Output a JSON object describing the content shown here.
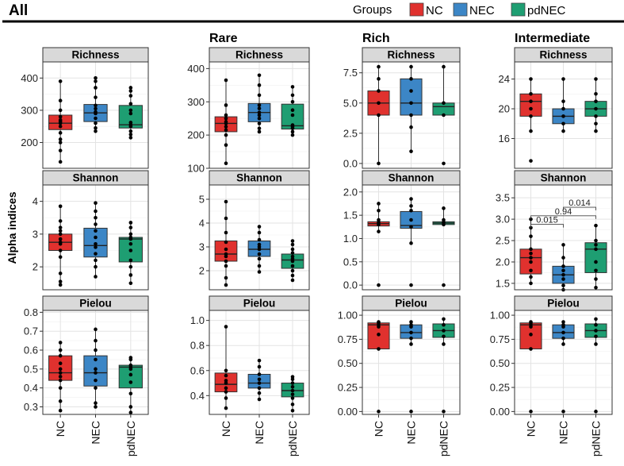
{
  "figure": {
    "title": "All",
    "y_axis_label": "Alpha indices",
    "legend": {
      "title": "Groups",
      "items": [
        {
          "label": "NC",
          "color": "#e0312e"
        },
        {
          "label": "NEC",
          "color": "#3c86c6"
        },
        {
          "label": "pdNEC",
          "color": "#1e9e72"
        }
      ]
    },
    "columns": [
      "All",
      "Rare",
      "Rich",
      "Intermediate"
    ],
    "rows": [
      "Richness",
      "Shannon",
      "Pielou"
    ]
  },
  "chart_data": [
    {
      "type": "boxplot",
      "column": "All",
      "metric": "Richness",
      "title": "Richness",
      "ylim": [
        120,
        450
      ],
      "yticks": [
        200,
        300,
        400
      ],
      "ytick_labels": [
        "200",
        "300",
        "400"
      ],
      "categories": [
        "NC",
        "NEC",
        "pdNEC"
      ],
      "boxes": [
        {
          "group": "NC",
          "q1": 240,
          "median": 260,
          "q3": 285,
          "whisker_low": 140,
          "whisker_high": 390,
          "points": [
            140,
            175,
            200,
            210,
            230,
            250,
            260,
            265,
            270,
            280,
            300,
            330,
            390
          ]
        },
        {
          "group": "NEC",
          "q1": 265,
          "median": 292,
          "q3": 318,
          "whisker_low": 235,
          "whisker_high": 400,
          "points": [
            235,
            245,
            260,
            275,
            290,
            295,
            305,
            315,
            340,
            370,
            390,
            400
          ]
        },
        {
          "group": "pdNEC",
          "q1": 245,
          "median": 255,
          "q3": 315,
          "whisker_low": 215,
          "whisker_high": 370,
          "points": [
            215,
            225,
            235,
            250,
            255,
            262,
            290,
            300,
            320,
            345,
            360,
            370
          ]
        }
      ]
    },
    {
      "type": "boxplot",
      "column": "All",
      "metric": "Shannon",
      "title": "Shannon",
      "ylim": [
        1.3,
        4.5
      ],
      "yticks": [
        2,
        3,
        4
      ],
      "ytick_labels": [
        "2",
        "3",
        "4"
      ],
      "categories": [
        "NC",
        "NEC",
        "pdNEC"
      ],
      "boxes": [
        {
          "group": "NC",
          "q1": 2.5,
          "median": 2.75,
          "q3": 3.0,
          "whisker_low": 1.45,
          "whisker_high": 3.85,
          "points": [
            1.45,
            1.55,
            1.8,
            2.3,
            2.5,
            2.7,
            2.75,
            2.85,
            3.0,
            3.1,
            3.2,
            3.4,
            3.85
          ]
        },
        {
          "group": "NEC",
          "q1": 2.3,
          "median": 2.65,
          "q3": 3.18,
          "whisker_low": 1.7,
          "whisker_high": 3.95,
          "points": [
            1.7,
            2.0,
            2.2,
            2.4,
            2.6,
            2.7,
            2.9,
            3.1,
            3.3,
            3.5,
            3.7,
            3.95
          ]
        },
        {
          "group": "pdNEC",
          "q1": 2.15,
          "median": 2.85,
          "q3": 2.9,
          "whisker_low": 1.5,
          "whisker_high": 3.35,
          "points": [
            1.5,
            1.75,
            2.0,
            2.2,
            2.5,
            2.7,
            2.85,
            2.9,
            3.0,
            3.2,
            3.35
          ]
        }
      ]
    },
    {
      "type": "boxplot",
      "column": "All",
      "metric": "Pielou",
      "title": "Pielou",
      "ylim": [
        0.26,
        0.81
      ],
      "yticks": [
        0.3,
        0.4,
        0.5,
        0.6,
        0.7,
        0.8
      ],
      "ytick_labels": [
        "0.3",
        "0.4",
        "0.5",
        "0.6",
        "0.7",
        "0.8"
      ],
      "categories": [
        "NC",
        "NEC",
        "pdNEC"
      ],
      "boxes": [
        {
          "group": "NC",
          "q1": 0.44,
          "median": 0.48,
          "q3": 0.57,
          "whisker_low": 0.28,
          "whisker_high": 0.64,
          "points": [
            0.28,
            0.33,
            0.4,
            0.44,
            0.46,
            0.48,
            0.5,
            0.53,
            0.57,
            0.6,
            0.64
          ]
        },
        {
          "group": "NEC",
          "q1": 0.41,
          "median": 0.48,
          "q3": 0.57,
          "whisker_low": 0.3,
          "whisker_high": 0.71,
          "points": [
            0.3,
            0.32,
            0.4,
            0.44,
            0.48,
            0.5,
            0.55,
            0.6,
            0.65,
            0.71
          ]
        },
        {
          "group": "pdNEC",
          "q1": 0.4,
          "median": 0.51,
          "q3": 0.52,
          "whisker_low": 0.27,
          "whisker_high": 0.56,
          "points": [
            0.27,
            0.3,
            0.37,
            0.43,
            0.47,
            0.5,
            0.51,
            0.52,
            0.55,
            0.56
          ]
        }
      ]
    },
    {
      "type": "boxplot",
      "column": "Rare",
      "metric": "Richness",
      "title": "Richness",
      "ylim": [
        100,
        420
      ],
      "yticks": [
        100,
        200,
        300,
        400
      ],
      "ytick_labels": [
        "100",
        "200",
        "300",
        "400"
      ],
      "categories": [
        "NC",
        "NEC",
        "pdNEC"
      ],
      "boxes": [
        {
          "group": "NC",
          "q1": 210,
          "median": 235,
          "q3": 255,
          "whisker_low": 115,
          "whisker_high": 365,
          "points": [
            115,
            170,
            200,
            215,
            225,
            235,
            240,
            250,
            260,
            290,
            365
          ]
        },
        {
          "group": "NEC",
          "q1": 240,
          "median": 268,
          "q3": 295,
          "whisker_low": 210,
          "whisker_high": 380,
          "points": [
            210,
            220,
            235,
            250,
            260,
            268,
            280,
            290,
            320,
            350,
            380
          ]
        },
        {
          "group": "pdNEC",
          "q1": 218,
          "median": 228,
          "q3": 293,
          "whisker_low": 200,
          "whisker_high": 345,
          "points": [
            200,
            210,
            220,
            225,
            230,
            260,
            275,
            300,
            320,
            345
          ]
        }
      ]
    },
    {
      "type": "boxplot",
      "column": "Rare",
      "metric": "Shannon",
      "title": "Shannon",
      "ylim": [
        1.2,
        5.6
      ],
      "yticks": [
        2,
        3,
        4,
        5
      ],
      "ytick_labels": [
        "2",
        "3",
        "4",
        "5"
      ],
      "categories": [
        "NC",
        "NEC",
        "pdNEC"
      ],
      "boxes": [
        {
          "group": "NC",
          "q1": 2.4,
          "median": 2.7,
          "q3": 3.25,
          "whisker_low": 1.4,
          "whisker_high": 4.9,
          "points": [
            1.4,
            1.7,
            2.2,
            2.4,
            2.6,
            2.7,
            2.9,
            3.2,
            3.6,
            4.2,
            4.9
          ]
        },
        {
          "group": "NEC",
          "q1": 2.6,
          "median": 2.9,
          "q3": 3.25,
          "whisker_low": 1.95,
          "whisker_high": 3.85,
          "points": [
            1.95,
            2.2,
            2.5,
            2.7,
            2.9,
            3.0,
            3.1,
            3.3,
            3.6,
            3.85
          ]
        },
        {
          "group": "pdNEC",
          "q1": 2.1,
          "median": 2.45,
          "q3": 2.7,
          "whisker_low": 1.6,
          "whisker_high": 3.25,
          "points": [
            1.6,
            1.8,
            2.0,
            2.2,
            2.4,
            2.5,
            2.6,
            2.75,
            2.9,
            3.1,
            3.25
          ]
        }
      ]
    },
    {
      "type": "boxplot",
      "column": "Rare",
      "metric": "Pielou",
      "title": "Pielou",
      "ylim": [
        0.25,
        1.08
      ],
      "yticks": [
        0.4,
        0.6,
        0.8,
        1.0
      ],
      "ytick_labels": [
        "0.4",
        "0.6",
        "0.8",
        "1.0"
      ],
      "categories": [
        "NC",
        "NEC",
        "pdNEC"
      ],
      "boxes": [
        {
          "group": "NC",
          "q1": 0.43,
          "median": 0.49,
          "q3": 0.58,
          "whisker_low": 0.3,
          "whisker_high": 0.95,
          "points": [
            0.3,
            0.38,
            0.43,
            0.46,
            0.5,
            0.52,
            0.56,
            0.6,
            0.95
          ]
        },
        {
          "group": "NEC",
          "q1": 0.46,
          "median": 0.5,
          "q3": 0.57,
          "whisker_low": 0.37,
          "whisker_high": 0.68,
          "points": [
            0.37,
            0.42,
            0.46,
            0.5,
            0.53,
            0.57,
            0.63,
            0.68
          ]
        },
        {
          "group": "pdNEC",
          "q1": 0.39,
          "median": 0.44,
          "q3": 0.5,
          "whisker_low": 0.28,
          "whisker_high": 0.55,
          "points": [
            0.28,
            0.33,
            0.38,
            0.41,
            0.44,
            0.47,
            0.5,
            0.53,
            0.55
          ]
        }
      ]
    },
    {
      "type": "boxplot",
      "column": "Rich",
      "metric": "Richness",
      "title": "Richness",
      "ylim": [
        -0.4,
        8.4
      ],
      "yticks": [
        0,
        2.5,
        5,
        7.5
      ],
      "ytick_labels": [
        "0.0",
        "2.5",
        "5.0",
        "7.5"
      ],
      "categories": [
        "NC",
        "NEC",
        "pdNEC"
      ],
      "boxes": [
        {
          "group": "NC",
          "q1": 4,
          "median": 5,
          "q3": 6,
          "whisker_low": 0,
          "whisker_high": 8,
          "points": [
            0,
            4,
            5,
            6,
            7,
            8
          ]
        },
        {
          "group": "NEC",
          "q1": 4,
          "median": 5,
          "q3": 7,
          "whisker_low": 1,
          "whisker_high": 8,
          "points": [
            1,
            3,
            4,
            5,
            6,
            7,
            8
          ]
        },
        {
          "group": "pdNEC",
          "q1": 4,
          "median": 4.7,
          "q3": 5,
          "whisker_low": 4,
          "whisker_high": 8,
          "points": [
            0,
            4,
            5,
            8
          ]
        }
      ]
    },
    {
      "type": "boxplot",
      "column": "Rich",
      "metric": "Shannon",
      "title": "Shannon",
      "ylim": [
        -0.1,
        2.15
      ],
      "yticks": [
        0,
        0.5,
        1.0,
        1.5,
        2.0
      ],
      "ytick_labels": [
        "0.0",
        "0.5",
        "1.0",
        "1.5",
        "2.0"
      ],
      "categories": [
        "NC",
        "NEC",
        "pdNEC"
      ],
      "boxes": [
        {
          "group": "NC",
          "q1": 1.27,
          "median": 1.32,
          "q3": 1.36,
          "whisker_low": 1.15,
          "whisker_high": 1.75,
          "points": [
            0,
            1.15,
            1.3,
            1.35,
            1.4,
            1.6,
            1.75
          ]
        },
        {
          "group": "NEC",
          "q1": 1.22,
          "median": 1.28,
          "q3": 1.58,
          "whisker_low": 0.9,
          "whisker_high": 1.85,
          "points": [
            0,
            0.9,
            1.25,
            1.4,
            1.6,
            1.7,
            1.85
          ]
        },
        {
          "group": "pdNEC",
          "q1": 1.3,
          "median": 1.33,
          "q3": 1.36,
          "whisker_low": 1.3,
          "whisker_high": 1.65,
          "points": [
            0,
            1.3,
            1.35,
            1.4,
            1.65
          ]
        }
      ]
    },
    {
      "type": "boxplot",
      "column": "Rich",
      "metric": "Pielou",
      "title": "Pielou",
      "ylim": [
        -0.03,
        1.05
      ],
      "yticks": [
        0,
        0.25,
        0.5,
        0.75,
        1.0
      ],
      "ytick_labels": [
        "0.00",
        "0.25",
        "0.50",
        "0.75",
        "1.00"
      ],
      "categories": [
        "NC",
        "NEC",
        "pdNEC"
      ],
      "boxes": [
        {
          "group": "NC",
          "q1": 0.65,
          "median": 0.9,
          "q3": 0.92,
          "whisker_low": 0.65,
          "whisker_high": 0.93,
          "points": [
            0,
            0.65,
            0.8,
            0.88,
            0.9,
            0.92,
            0.93
          ]
        },
        {
          "group": "NEC",
          "q1": 0.76,
          "median": 0.82,
          "q3": 0.9,
          "whisker_low": 0.7,
          "whisker_high": 0.93,
          "points": [
            0,
            0.7,
            0.76,
            0.82,
            0.88,
            0.9,
            0.93
          ]
        },
        {
          "group": "pdNEC",
          "q1": 0.77,
          "median": 0.84,
          "q3": 0.91,
          "whisker_low": 0.7,
          "whisker_high": 0.96,
          "points": [
            0,
            0.7,
            0.78,
            0.84,
            0.9,
            0.96
          ]
        }
      ]
    },
    {
      "type": "boxplot",
      "column": "Intermediate",
      "metric": "Richness",
      "title": "Richness",
      "ylim": [
        12,
        26.3
      ],
      "yticks": [
        16,
        20,
        24
      ],
      "ytick_labels": [
        "16",
        "20",
        "24"
      ],
      "categories": [
        "NC",
        "NEC",
        "pdNEC"
      ],
      "boxes": [
        {
          "group": "NC",
          "q1": 19,
          "median": 21,
          "q3": 22,
          "whisker_low": 17,
          "whisker_high": 24,
          "points": [
            13,
            17,
            19,
            20,
            21,
            22,
            24
          ]
        },
        {
          "group": "NEC",
          "q1": 18,
          "median": 19,
          "q3": 20,
          "whisker_low": 17,
          "whisker_high": 24,
          "points": [
            17,
            18,
            19,
            20,
            21,
            24
          ]
        },
        {
          "group": "pdNEC",
          "q1": 19,
          "median": 20,
          "q3": 21,
          "whisker_low": 17,
          "whisker_high": 24,
          "points": [
            17,
            18,
            19,
            20,
            21,
            22,
            24
          ]
        }
      ]
    },
    {
      "type": "boxplot",
      "column": "Intermediate",
      "metric": "Shannon",
      "title": "Shannon",
      "ylim": [
        1.35,
        3.8
      ],
      "yticks": [
        1.5,
        2.0,
        2.5,
        3.0,
        3.5
      ],
      "ytick_labels": [
        "1.5",
        "2.0",
        "2.5",
        "3.0",
        "3.5"
      ],
      "categories": [
        "NC",
        "NEC",
        "pdNEC"
      ],
      "boxes": [
        {
          "group": "NC",
          "q1": 1.72,
          "median": 2.1,
          "q3": 2.3,
          "whisker_low": 1.5,
          "whisker_high": 3.0,
          "points": [
            1.5,
            1.65,
            1.8,
            2.0,
            2.1,
            2.2,
            2.3,
            2.6,
            2.8,
            3.0
          ]
        },
        {
          "group": "NEC",
          "q1": 1.5,
          "median": 1.7,
          "q3": 1.9,
          "whisker_low": 1.35,
          "whisker_high": 2.4,
          "points": [
            1.35,
            1.45,
            1.6,
            1.7,
            1.8,
            1.9,
            2.1,
            2.4
          ]
        },
        {
          "group": "pdNEC",
          "q1": 1.75,
          "median": 2.3,
          "q3": 2.45,
          "whisker_low": 1.4,
          "whisker_high": 2.85,
          "points": [
            1.4,
            1.6,
            1.8,
            2.0,
            2.3,
            2.4,
            2.5,
            2.85
          ]
        }
      ],
      "significance": [
        {
          "from": "NC",
          "to": "NEC",
          "label": "0.015",
          "y": 2.88
        },
        {
          "from": "NC",
          "to": "pdNEC",
          "label": "0.94",
          "y": 3.08
        },
        {
          "from": "NEC",
          "to": "pdNEC",
          "label": "0.014",
          "y": 3.28
        }
      ]
    },
    {
      "type": "boxplot",
      "column": "Intermediate",
      "metric": "Pielou",
      "title": "Pielou",
      "ylim": [
        -0.03,
        1.05
      ],
      "yticks": [
        0,
        0.25,
        0.5,
        0.75,
        1.0
      ],
      "ytick_labels": [
        "0.00",
        "0.25",
        "0.50",
        "0.75",
        "1.00"
      ],
      "categories": [
        "NC",
        "NEC",
        "pdNEC"
      ],
      "boxes": [
        {
          "group": "NC",
          "q1": 0.65,
          "median": 0.9,
          "q3": 0.92,
          "whisker_low": 0.65,
          "whisker_high": 0.93,
          "points": [
            0,
            0.65,
            0.8,
            0.88,
            0.9,
            0.92,
            0.93
          ]
        },
        {
          "group": "NEC",
          "q1": 0.76,
          "median": 0.82,
          "q3": 0.9,
          "whisker_low": 0.7,
          "whisker_high": 0.93,
          "points": [
            0,
            0.7,
            0.76,
            0.82,
            0.88,
            0.9,
            0.93
          ]
        },
        {
          "group": "pdNEC",
          "q1": 0.77,
          "median": 0.84,
          "q3": 0.91,
          "whisker_low": 0.7,
          "whisker_high": 0.96,
          "points": [
            0,
            0.7,
            0.78,
            0.84,
            0.9,
            0.96
          ]
        }
      ]
    }
  ]
}
